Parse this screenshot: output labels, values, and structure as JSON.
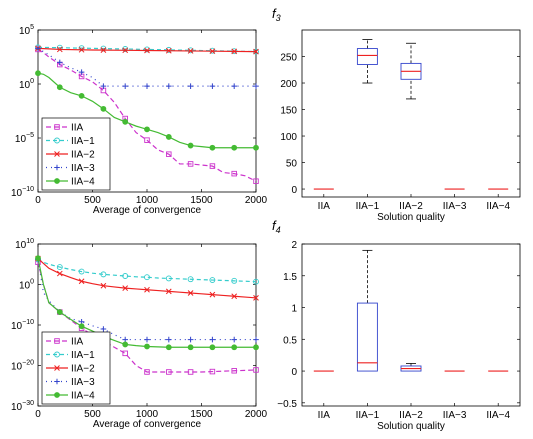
{
  "figure": {
    "f3_label": "f",
    "f3_sub": "3",
    "f4_label": "f",
    "f4_sub": "4"
  },
  "chart_data": [
    {
      "type": "line",
      "id": "conv_f3",
      "xlabel": "Average of convergence",
      "ylabel": "",
      "xlim": [
        0,
        2000
      ],
      "ylim_log10": [
        -10,
        5
      ],
      "yscale": "log",
      "x_ticks": [
        "0",
        "500",
        "1000",
        "1500",
        "2000"
      ],
      "y_ticks": [
        {
          "base": "10",
          "exp": "5",
          "log": 5
        },
        {
          "base": "10",
          "exp": "0",
          "log": 0
        },
        {
          "base": "10",
          "exp": "−5",
          "log": -5
        },
        {
          "base": "10",
          "exp": "−10",
          "log": -10
        }
      ],
      "legend_position": "bottom-left",
      "series": [
        {
          "name": "IIA",
          "color": "#cc33cc",
          "dash": "5,3",
          "marker": "square",
          "x": [
            0,
            50,
            100,
            200,
            300,
            400,
            500,
            600,
            700,
            800,
            900,
            1000,
            1100,
            1200,
            1300,
            1400,
            1500,
            1600,
            1700,
            1800,
            1900,
            2000
          ],
          "log10_y": [
            3.2,
            2.9,
            2.5,
            1.8,
            1.3,
            0.7,
            0.2,
            -0.6,
            -1.7,
            -3.2,
            -4.5,
            -5.2,
            -6.1,
            -6.5,
            -7.4,
            -7.4,
            -7.5,
            -7.6,
            -8.2,
            -8.3,
            -8.5,
            -9.0
          ]
        },
        {
          "name": "IIA−1",
          "color": "#33cccc",
          "dash": "4,3",
          "marker": "circle",
          "x": [
            0,
            2000
          ],
          "log10_y": [
            3.4,
            3.0
          ]
        },
        {
          "name": "IIA−2",
          "color": "#ee2222",
          "dash": "",
          "marker": "x",
          "x": [
            0,
            100,
            200,
            500,
            1000,
            1500,
            2000
          ],
          "log10_y": [
            3.3,
            3.25,
            3.2,
            3.15,
            3.1,
            3.05,
            3.0
          ]
        },
        {
          "name": "IIA−3",
          "color": "#3344cc",
          "dash": "1,4",
          "marker": "plus",
          "x": [
            0,
            100,
            200,
            300,
            400,
            500,
            550,
            600,
            2000
          ],
          "log10_y": [
            3.3,
            2.7,
            2.0,
            1.5,
            1.1,
            0.6,
            0.2,
            -0.2,
            -0.2
          ]
        },
        {
          "name": "IIA−4",
          "color": "#44bb33",
          "dash": "",
          "marker": "dot",
          "x": [
            0,
            50,
            100,
            200,
            300,
            400,
            500,
            600,
            700,
            800,
            900,
            1000,
            1100,
            1200,
            1300,
            1400,
            1500,
            1600,
            1700,
            1800,
            1900,
            2000
          ],
          "log10_y": [
            1.0,
            0.9,
            0.6,
            -0.3,
            -0.8,
            -1.1,
            -1.6,
            -2.3,
            -3.1,
            -3.5,
            -3.9,
            -4.2,
            -4.5,
            -4.9,
            -5.4,
            -5.7,
            -5.8,
            -5.9,
            -5.9,
            -5.9,
            -5.9,
            -5.9
          ]
        }
      ]
    },
    {
      "type": "box",
      "id": "box_f3",
      "xlabel": "Solution quality",
      "ylabel": "",
      "ylim": [
        -15,
        300
      ],
      "y_ticks": [
        0,
        50,
        100,
        150,
        200,
        250
      ],
      "categories": [
        "IIA",
        "IIA−1",
        "IIA−2",
        "IIA−3",
        "IIA−4"
      ],
      "boxes": [
        {
          "min": 0,
          "q1": 0,
          "median": 0,
          "q3": 0,
          "max": 0
        },
        {
          "min": 200,
          "q1": 235,
          "median": 252,
          "q3": 265,
          "max": 282
        },
        {
          "min": 170,
          "q1": 207,
          "median": 222,
          "q3": 237,
          "max": 275
        },
        {
          "min": 0,
          "q1": 0,
          "median": 0,
          "q3": 0,
          "max": 0
        },
        {
          "min": 0,
          "q1": 0,
          "median": 0,
          "q3": 0,
          "max": 0
        }
      ]
    },
    {
      "type": "line",
      "id": "conv_f4",
      "xlabel": "Average of convergence",
      "ylabel": "",
      "xlim": [
        0,
        2000
      ],
      "ylim_log10": [
        -30,
        10
      ],
      "yscale": "log",
      "x_ticks": [
        "0",
        "500",
        "1000",
        "1500",
        "2000"
      ],
      "y_ticks": [
        {
          "base": "10",
          "exp": "10",
          "log": 10
        },
        {
          "base": "10",
          "exp": "0",
          "log": 0
        },
        {
          "base": "10",
          "exp": "−10",
          "log": -10
        },
        {
          "base": "10",
          "exp": "−20",
          "log": -20
        },
        {
          "base": "10",
          "exp": "−30",
          "log": -30
        }
      ],
      "legend_position": "bottom-left",
      "series": [
        {
          "name": "IIA",
          "color": "#cc33cc",
          "dash": "5,3",
          "marker": "square",
          "x": [
            0,
            50,
            100,
            200,
            300,
            400,
            500,
            600,
            700,
            800,
            900,
            1000,
            1100,
            1200,
            1300,
            1400,
            1500,
            1600,
            1700,
            1800,
            1900,
            2000
          ],
          "log10_y": [
            5.5,
            0,
            -4.5,
            -6.8,
            -8.8,
            -10.8,
            -12.5,
            -14.0,
            -15.5,
            -17.0,
            -20.0,
            -21.6,
            -21.6,
            -21.6,
            -21.6,
            -21.6,
            -21.6,
            -21.5,
            -21.4,
            -21.3,
            -21.2,
            -21.1
          ]
        },
        {
          "name": "IIA−1",
          "color": "#33cccc",
          "dash": "4,3",
          "marker": "circle",
          "x": [
            0,
            50,
            100,
            200,
            300,
            400,
            500,
            600,
            700,
            800,
            900,
            1000,
            1100,
            1200,
            1300,
            1400,
            1500,
            1600,
            1700,
            1800,
            1900,
            2000
          ],
          "log10_y": [
            6.2,
            5.5,
            5.0,
            4.3,
            3.7,
            3.2,
            2.8,
            2.5,
            2.3,
            2.1,
            1.9,
            1.8,
            1.6,
            1.5,
            1.4,
            1.3,
            1.2,
            1.1,
            1.0,
            0.9,
            0.8,
            0.7
          ]
        },
        {
          "name": "IIA−2",
          "color": "#ee2222",
          "dash": "",
          "marker": "x",
          "x": [
            0,
            50,
            100,
            200,
            300,
            400,
            500,
            600,
            700,
            800,
            900,
            1000,
            1100,
            1200,
            1300,
            1400,
            1500,
            1600,
            1700,
            1800,
            1900,
            2000
          ],
          "log10_y": [
            6.4,
            5.2,
            4.0,
            2.7,
            1.7,
            0.8,
            0.2,
            -0.3,
            -0.6,
            -0.9,
            -1.1,
            -1.3,
            -1.5,
            -1.7,
            -1.9,
            -2.1,
            -2.3,
            -2.5,
            -2.7,
            -2.9,
            -3.1,
            -3.3
          ]
        },
        {
          "name": "IIA−3",
          "color": "#3344cc",
          "dash": "1,4",
          "marker": "plus",
          "x": [
            0,
            50,
            100,
            200,
            300,
            400,
            500,
            600,
            700,
            800,
            900,
            1000,
            1500,
            2000
          ],
          "log10_y": [
            6.2,
            -2.0,
            -4.0,
            -6.8,
            -8.4,
            -9.2,
            -10.2,
            -11.0,
            -12.4,
            -13.6,
            -13.6,
            -13.6,
            -13.6,
            -13.6
          ]
        },
        {
          "name": "IIA−4",
          "color": "#44bb33",
          "dash": "",
          "marker": "dot",
          "x": [
            0,
            50,
            100,
            200,
            300,
            400,
            500,
            600,
            700,
            800,
            900,
            1000,
            1100,
            1200,
            1300,
            1400,
            1500,
            1600,
            1700,
            1800,
            1900,
            2000
          ],
          "log10_y": [
            6.5,
            0,
            -4.5,
            -6.8,
            -8.6,
            -10.3,
            -11.5,
            -12.8,
            -13.8,
            -14.8,
            -15.1,
            -15.3,
            -15.4,
            -15.5,
            -15.5,
            -15.5,
            -15.5,
            -15.5,
            -15.5,
            -15.5,
            -15.5,
            -15.5
          ]
        }
      ]
    },
    {
      "type": "box",
      "id": "box_f4",
      "xlabel": "Solution quality",
      "ylabel": "",
      "ylim": [
        -0.55,
        2.0
      ],
      "y_ticks": [
        -0.5,
        0,
        0.5,
        1,
        1.5,
        2
      ],
      "y_tick_labels": [
        "−0.5",
        "0",
        "0.5",
        "1",
        "1.5",
        "2"
      ],
      "categories": [
        "IIA",
        "IIA−1",
        "IIA−2",
        "IIA−3",
        "IIA−4"
      ],
      "boxes": [
        {
          "min": 0,
          "q1": 0,
          "median": 0,
          "q3": 0,
          "max": 0
        },
        {
          "min": 0,
          "q1": 0,
          "median": 0.13,
          "q3": 1.07,
          "max": 1.9
        },
        {
          "min": 0,
          "q1": 0,
          "median": 0.04,
          "q3": 0.08,
          "max": 0.12
        },
        {
          "min": 0,
          "q1": 0,
          "median": 0,
          "q3": 0,
          "max": 0
        },
        {
          "min": 0,
          "q1": 0,
          "median": 0,
          "q3": 0,
          "max": 0
        }
      ]
    }
  ]
}
